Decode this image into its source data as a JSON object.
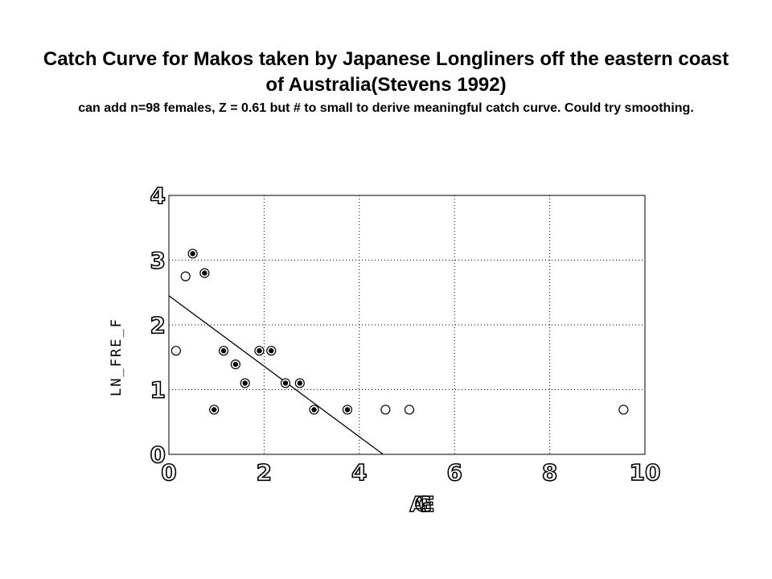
{
  "title": "Catch Curve for Makos taken by Japanese Longliners off the eastern coast of Australia(Stevens 1992)",
  "subtitle": "can add n=98 females, Z = 0.61 but # to small to derive meaningful catch curve. Could try smoothing.",
  "chart_data": {
    "type": "scatter",
    "title": "Catch Curve for Makos taken by Japanese Longliners off the eastern coast of Australia(Stevens 1992)",
    "xlabel": "AGE",
    "ylabel": "LN_FRE_F",
    "xlim": [
      0,
      10
    ],
    "ylim": [
      0,
      4
    ],
    "x_ticks": [
      0,
      2,
      4,
      6,
      8,
      10
    ],
    "y_ticks": [
      0,
      1,
      2,
      3,
      4
    ],
    "grid": true,
    "series": [
      {
        "marker": "open-circle-with-filled-dot",
        "x": [
          0.5,
          0.75,
          0.95,
          1.15,
          1.4,
          1.6,
          1.9,
          2.15,
          2.45,
          2.75,
          3.05,
          3.75
        ],
        "y": [
          3.1,
          2.8,
          0.69,
          1.6,
          1.39,
          1.1,
          1.6,
          1.6,
          1.1,
          1.1,
          0.69,
          0.69
        ]
      },
      {
        "marker": "open-circle",
        "x": [
          0.15,
          0.35,
          4.55,
          5.05,
          9.55
        ],
        "y": [
          1.6,
          2.75,
          0.69,
          0.69,
          0.69
        ]
      }
    ],
    "fit_line": {
      "x": [
        0,
        4.5
      ],
      "y": [
        2.45,
        0
      ]
    }
  }
}
